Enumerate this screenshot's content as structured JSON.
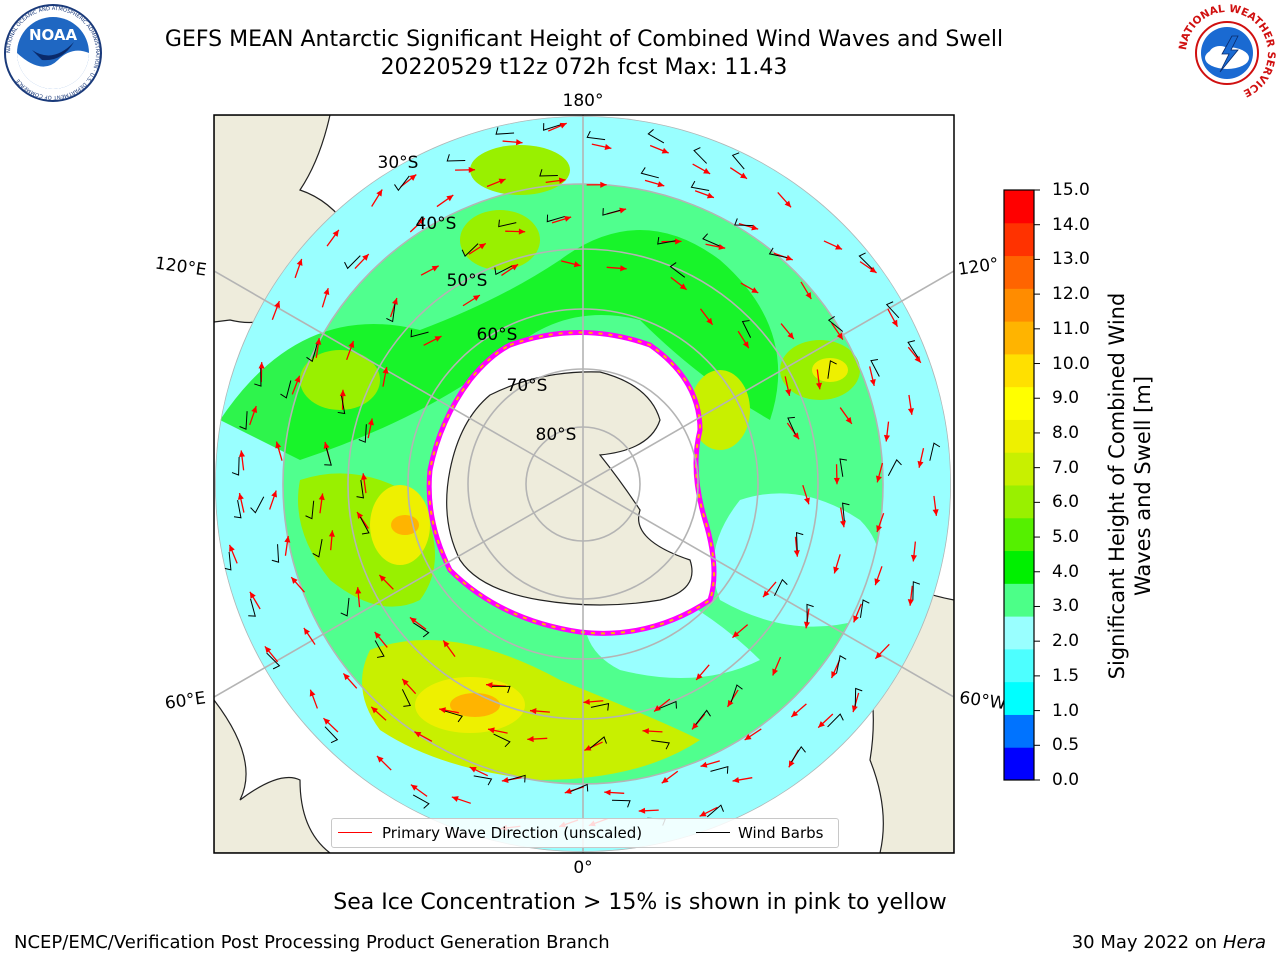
{
  "header": {
    "title_line1": "GEFS MEAN Antarctic Significant Height of Combined Wind Waves and Swell",
    "title_line2": "20220529 t12z 072h fcst   Max: 11.43"
  },
  "logos": {
    "left": {
      "text": "NOAA",
      "ring_text": "NATIONAL OCEANIC AND ATMOSPHERIC ADMINISTRATION · U.S. DEPARTMENT OF COMMERCE"
    },
    "right": {
      "ring_text": "NATIONAL WEATHER SERVICE"
    }
  },
  "map": {
    "projection": "south polar stereographic",
    "longitude_labels": [
      "180°",
      "120°E",
      "120°",
      "60°E",
      "60°W",
      "0°"
    ],
    "latitude_labels": [
      "30°S",
      "40°S",
      "50°S",
      "60°S",
      "70°S",
      "80°S"
    ],
    "legend": {
      "wave_direction": "Primary Wave Direction (unscaled)",
      "wind_barbs": "Wind Barbs"
    },
    "colors": {
      "land": "#eeecdc",
      "ice_edge": "#ff00ff",
      "wave_arrow": "#ff0000",
      "wind_barb": "#000000",
      "graticule": "#b4b4b4"
    }
  },
  "colorbar": {
    "label": "Significant Height of Combined Wind Waves and Swell [m]",
    "ticks": [
      "15.0",
      "14.0",
      "13.0",
      "12.0",
      "11.0",
      "10.0",
      "9.0",
      "8.0",
      "7.0",
      "6.0",
      "5.0",
      "4.0",
      "3.0",
      "2.0",
      "1.5",
      "1.0",
      "0.5",
      "0.0"
    ],
    "colors": [
      "#0000ff",
      "#0073ff",
      "#00ffff",
      "#4dffff",
      "#99ffff",
      "#4cff88",
      "#00f000",
      "#55f000",
      "#99f000",
      "#c8f000",
      "#eef000",
      "#ffff00",
      "#ffe000",
      "#ffb400",
      "#ff8c00",
      "#ff6400",
      "#ff3200",
      "#ff0000"
    ]
  },
  "footer": {
    "note": "Sea Ice Concentration > 15% is shown in pink to yellow",
    "credit": "NCEP/EMC/Verification Post Processing Product Generation Branch",
    "date": "30 May 2022 on",
    "system": "Hera"
  }
}
